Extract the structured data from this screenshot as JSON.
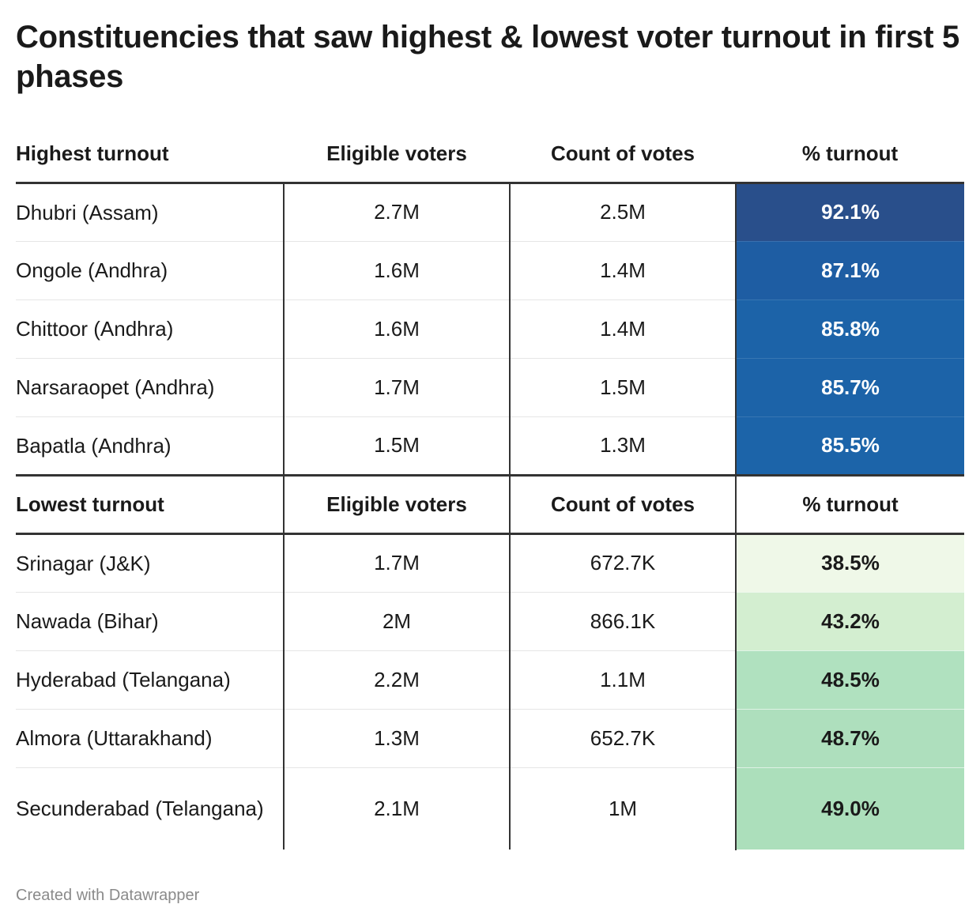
{
  "title": "Constituencies that saw highest & lowest voter turnout in first 5 phases",
  "highest": {
    "headers": [
      "Highest turnout",
      "Eligible voters",
      "Count of votes",
      "% turnout"
    ],
    "rows": [
      {
        "name": "Dhubri (Assam)",
        "eligible": "2.7M",
        "count": "2.5M",
        "pct": "92.1%",
        "color": "#294f8b"
      },
      {
        "name": "Ongole (Andhra)",
        "eligible": "1.6M",
        "count": "1.4M",
        "pct": "87.1%",
        "color": "#1e5da3"
      },
      {
        "name": "Chittoor (Andhra)",
        "eligible": "1.6M",
        "count": "1.4M",
        "pct": "85.8%",
        "color": "#1c63a8"
      },
      {
        "name": "Narsaraopet (Andhra)",
        "eligible": "1.7M",
        "count": "1.5M",
        "pct": "85.7%",
        "color": "#1c63a8"
      },
      {
        "name": "Bapatla (Andhra)",
        "eligible": "1.5M",
        "count": "1.3M",
        "pct": "85.5%",
        "color": "#1c64a9"
      }
    ]
  },
  "lowest": {
    "headers": [
      "Lowest turnout",
      "Eligible voters",
      "Count of votes",
      "% turnout"
    ],
    "rows": [
      {
        "name": "Srinagar (J&K)",
        "eligible": "1.7M",
        "count": "672.7K",
        "pct": "38.5%",
        "color": "#eff8e8"
      },
      {
        "name": "Nawada (Bihar)",
        "eligible": "2M",
        "count": "866.1K",
        "pct": "43.2%",
        "color": "#d3eed0"
      },
      {
        "name": "Hyderabad (Telangana)",
        "eligible": "2.2M",
        "count": "1.1M",
        "pct": "48.5%",
        "color": "#b0e1bf"
      },
      {
        "name": "Almora (Uttarakhand)",
        "eligible": "1.3M",
        "count": "652.7K",
        "pct": "48.7%",
        "color": "#aedfbd"
      },
      {
        "name": "Secunderabad (Telangana)",
        "eligible": "2.1M",
        "count": "1M",
        "pct": "49.0%",
        "color": "#acdfbb"
      }
    ]
  },
  "footer": "Created with Datawrapper"
}
